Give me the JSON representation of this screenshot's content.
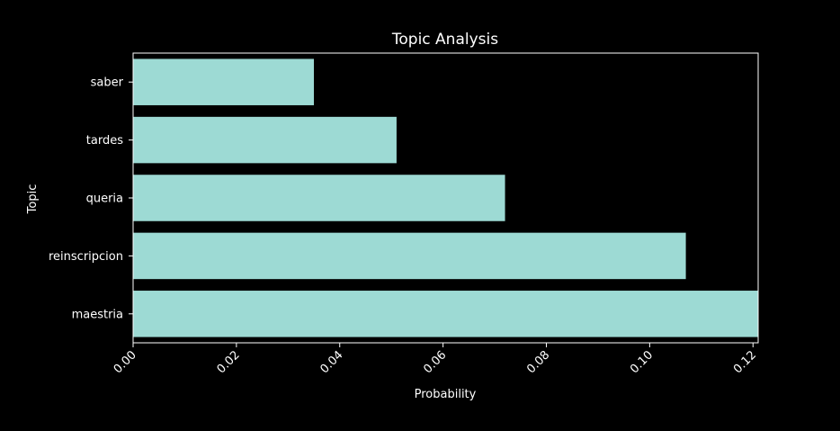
{
  "chart_data": {
    "type": "bar",
    "orientation": "horizontal",
    "title": "Topic Analysis",
    "xlabel": "Probability",
    "ylabel": "Topic",
    "categories": [
      "saber",
      "tardes",
      "queria",
      "reinscripcion",
      "maestria"
    ],
    "values": [
      0.035,
      0.051,
      0.072,
      0.107,
      0.121
    ],
    "xlim": [
      0,
      0.121
    ],
    "xticks": [
      0.0,
      0.02,
      0.04,
      0.06,
      0.08,
      0.1,
      0.12
    ],
    "xtick_labels": [
      "0.00",
      "0.02",
      "0.04",
      "0.06",
      "0.08",
      "0.10",
      "0.12"
    ],
    "bar_color": "#9ddad4",
    "background_color": "#000000",
    "text_color": "#ffffff",
    "grid": false,
    "legend": "none"
  }
}
